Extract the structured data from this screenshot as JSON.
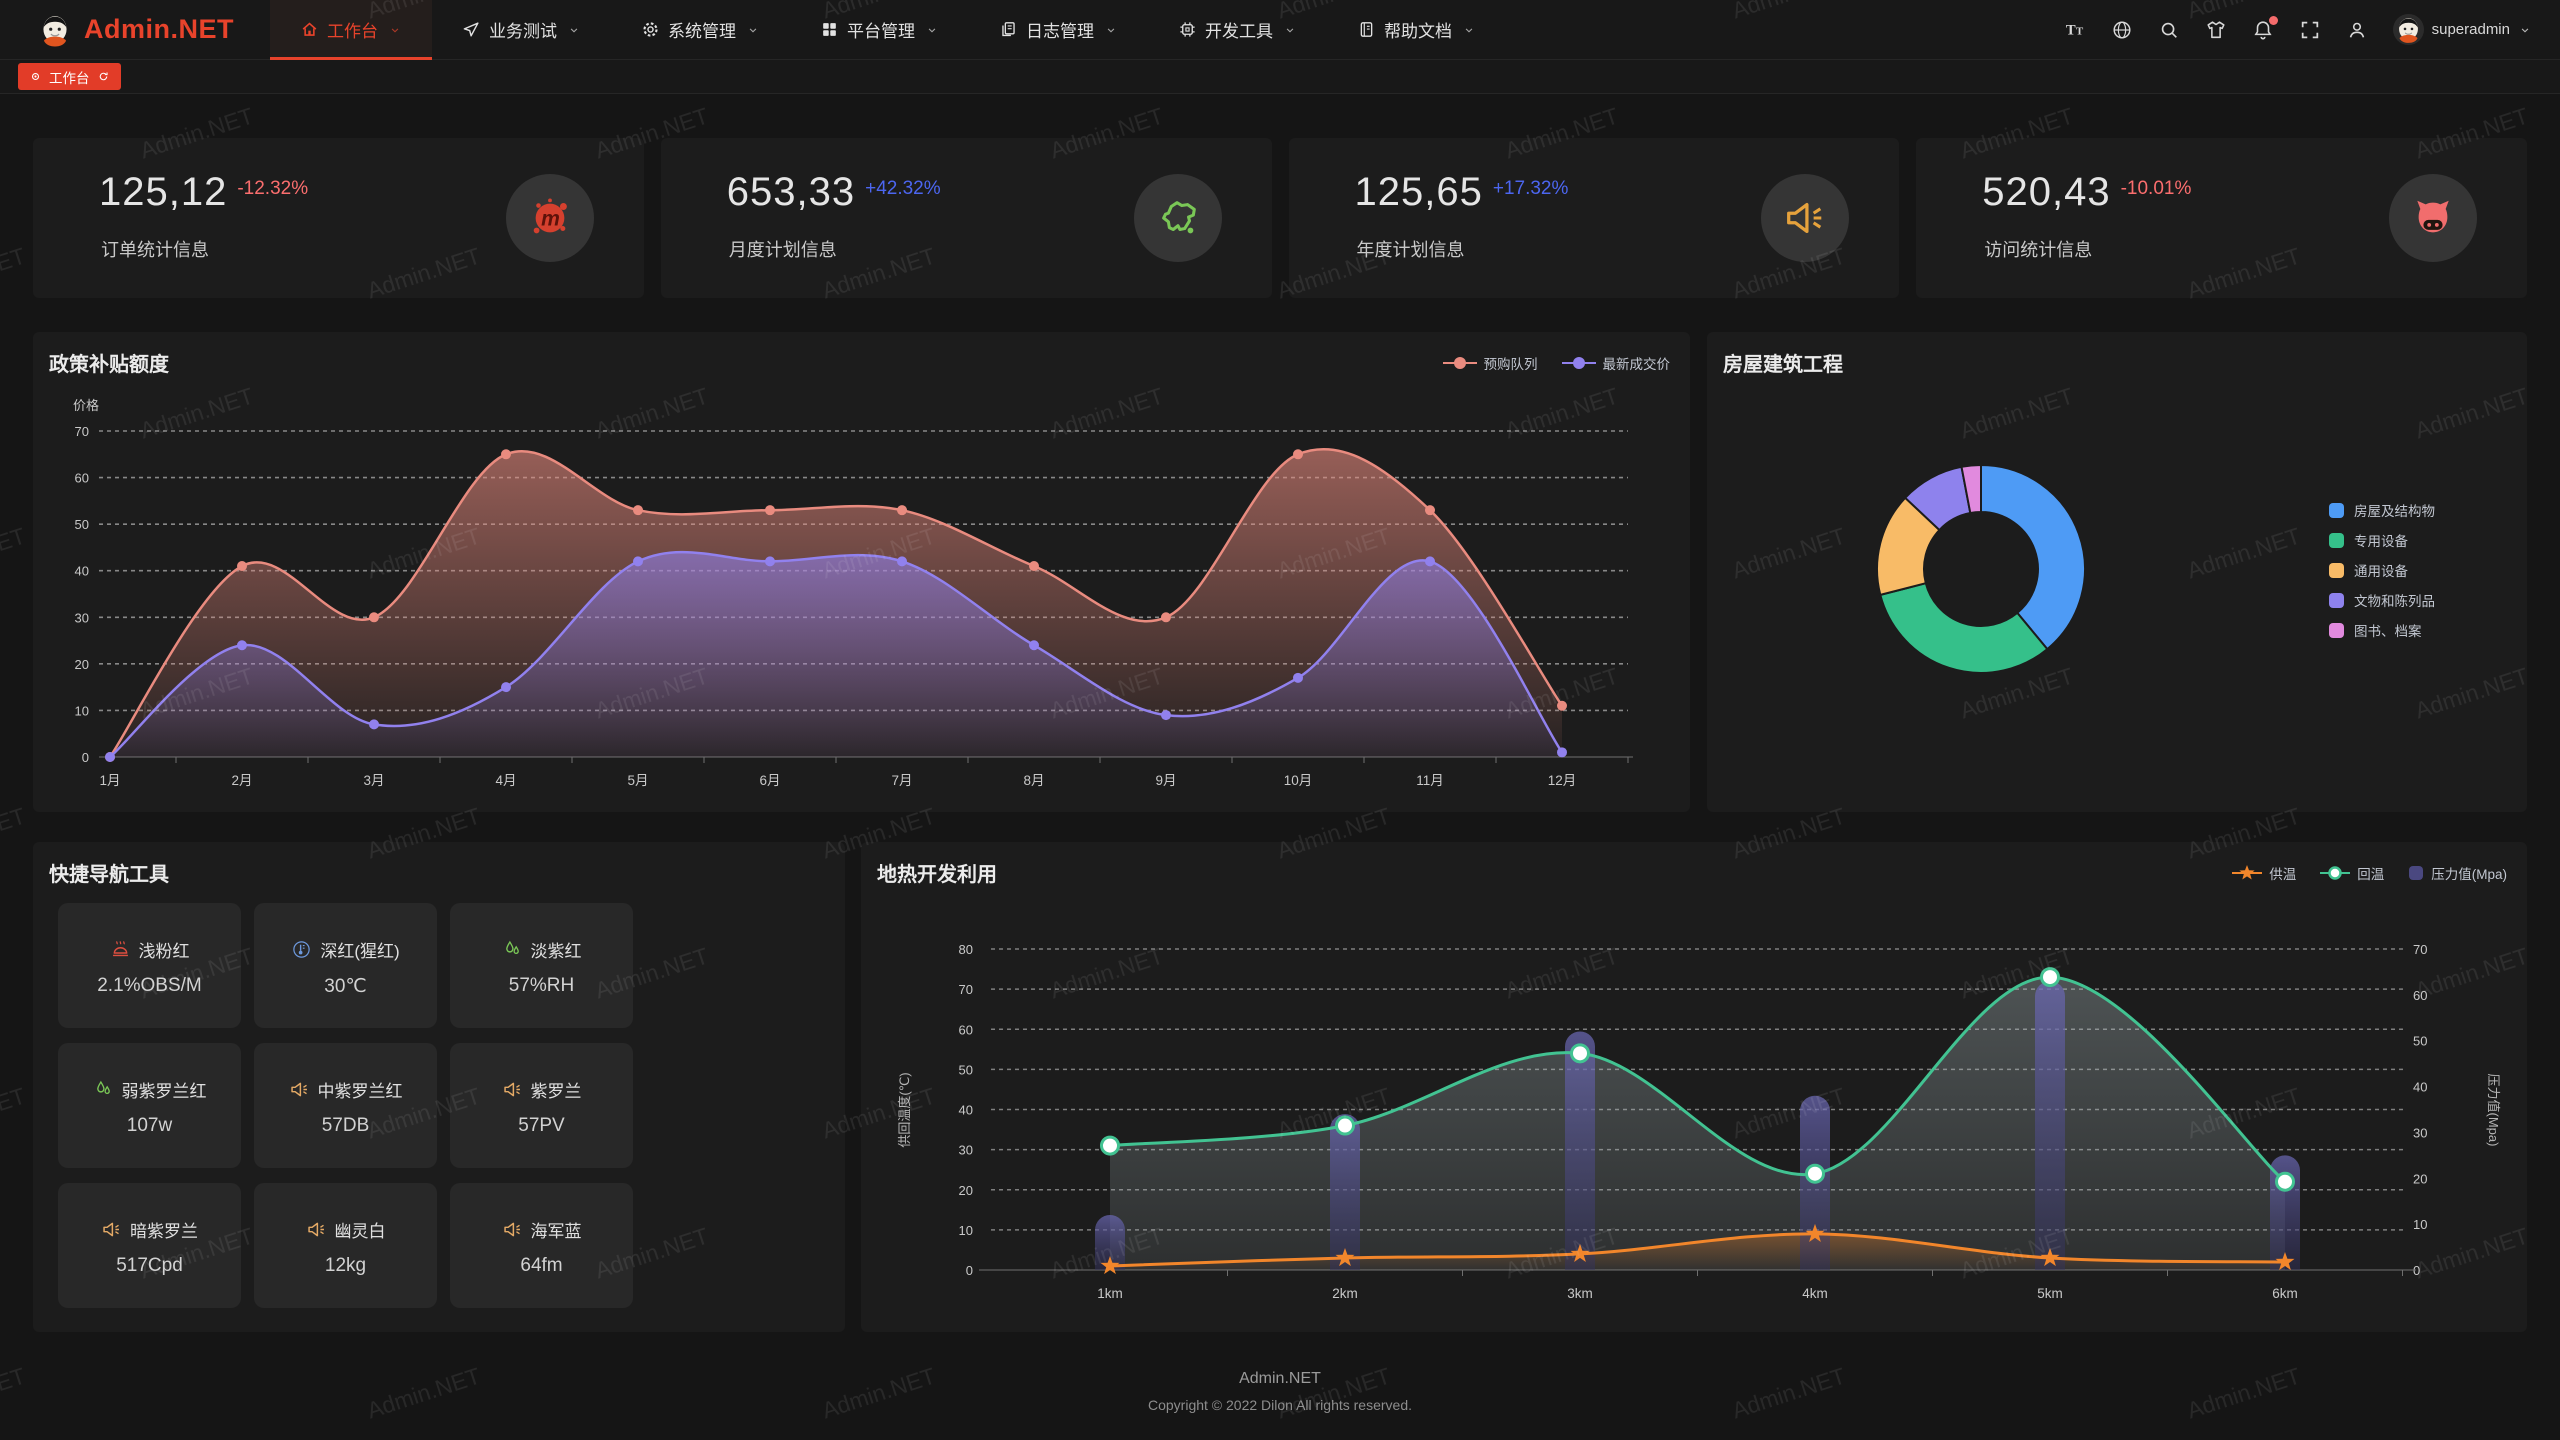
{
  "navbar": {
    "logo_text": "Admin.NET",
    "menu": [
      {
        "key": "workbench",
        "label": "工作台",
        "icon": "home-icon",
        "active": true
      },
      {
        "key": "business-test",
        "label": "业务测试",
        "icon": "navigation-icon",
        "active": false
      },
      {
        "key": "system-management",
        "label": "系统管理",
        "icon": "gear-icon",
        "active": false
      },
      {
        "key": "platform-management",
        "label": "平台管理",
        "icon": "grid-icon",
        "active": false
      },
      {
        "key": "log-management",
        "label": "日志管理",
        "icon": "log-icon",
        "active": false
      },
      {
        "key": "dev-tools",
        "label": "开发工具",
        "icon": "chip-icon",
        "active": false
      },
      {
        "key": "help-docs",
        "label": "帮助文档",
        "icon": "docs-icon",
        "active": false
      }
    ],
    "right_icons": [
      {
        "name": "font-size-icon"
      },
      {
        "name": "language-icon"
      },
      {
        "name": "search-icon"
      },
      {
        "name": "theme-icon"
      },
      {
        "name": "bell-icon",
        "badge": true
      },
      {
        "name": "fullscreen-icon"
      },
      {
        "name": "profile-icon"
      }
    ],
    "user": "superadmin"
  },
  "tabbar": {
    "active_tab": "工作台"
  },
  "theme": {
    "accent": "#e23c28",
    "delta_up_color": "#4c66f0",
    "delta_down_color": "#fb6e6e",
    "panel_bg": "#1c1c1c",
    "page_bg": "#151515"
  },
  "stats": [
    {
      "value": "125,12",
      "delta": "-12.32%",
      "trend": "down",
      "label": "订单统计信息",
      "icon": "splash-icon",
      "icon_color": "#d5402e"
    },
    {
      "value": "653,33",
      "delta": "+42.32%",
      "trend": "up",
      "label": "月度计划信息",
      "icon": "china-map-icon",
      "icon_color": "#7ac756"
    },
    {
      "value": "125,65",
      "delta": "+17.32%",
      "trend": "up",
      "label": "年度计划信息",
      "icon": "speaker-icon",
      "icon_color": "#e6a23c"
    },
    {
      "value": "520,43",
      "delta": "-10.01%",
      "trend": "down",
      "label": "访问统计信息",
      "icon": "cat-icon",
      "icon_color": "#f16d6d"
    }
  ],
  "chart_data": [
    {
      "type": "area",
      "title": "政策补贴额度",
      "ylabel": "价格",
      "ylim": [
        0,
        70
      ],
      "ytick_step": 10,
      "grid": "dashed",
      "legend_position": "top-right",
      "categories": [
        "1月",
        "2月",
        "3月",
        "4月",
        "5月",
        "6月",
        "7月",
        "8月",
        "9月",
        "10月",
        "11月",
        "12月"
      ],
      "series": [
        {
          "name": "预购队列",
          "color": "#e98b7f",
          "values": [
            0,
            41,
            30,
            65,
            53,
            53,
            53,
            41,
            30,
            65,
            53,
            11
          ]
        },
        {
          "name": "最新成交价",
          "color": "#9181ee",
          "values": [
            0,
            24,
            7,
            15,
            42,
            42,
            42,
            24,
            9,
            17,
            42,
            1
          ]
        }
      ]
    },
    {
      "type": "pie",
      "title": "房屋建筑工程",
      "donut": true,
      "legend_position": "right",
      "labels": [
        "房屋及结构物",
        "专用设备",
        "通用设备",
        "文物和陈列品",
        "图书、档案"
      ],
      "values": [
        39,
        32,
        16,
        10,
        3
      ],
      "colors": [
        "#4e9bf5",
        "#35c08a",
        "#f8bb67",
        "#8e82ed",
        "#e18ade"
      ]
    },
    {
      "type": "mixed",
      "title": "地热开发利用",
      "grid": "dashed",
      "legend_position": "top-right",
      "categories": [
        "1km",
        "2km",
        "3km",
        "4km",
        "5km",
        "6km"
      ],
      "left_axis": {
        "label": "供回温度(℃)",
        "min": 0,
        "max": 80,
        "step": 10
      },
      "right_axis": {
        "label": "压力值(Mpa)",
        "min": 0,
        "max": 70,
        "step": 10
      },
      "series": [
        {
          "name": "供温",
          "type": "line",
          "marker": "star",
          "axis": "left",
          "color": "#f2862b",
          "values": [
            1,
            3,
            4,
            9,
            3,
            2
          ]
        },
        {
          "name": "回温",
          "type": "line",
          "marker": "circle",
          "axis": "left",
          "color": "#42c392",
          "values": [
            31,
            36,
            54,
            24,
            73,
            22
          ]
        },
        {
          "name": "压力值(Mpa)",
          "type": "bar",
          "axis": "right",
          "color": "#54528f",
          "values": [
            12,
            34,
            52,
            38,
            63,
            25
          ]
        }
      ]
    }
  ],
  "quick_nav": {
    "title": "快捷导航工具",
    "items": [
      {
        "icon": "heat-icon",
        "icon_color": "#dd4f40",
        "name": "浅粉红",
        "value": "2.1%OBS/M"
      },
      {
        "icon": "thermometer-icon",
        "icon_color": "#6e9ade",
        "name": "深红(猩红)",
        "value": "30℃"
      },
      {
        "icon": "drops-icon",
        "icon_color": "#7ac756",
        "name": "淡紫红",
        "value": "57%RH"
      },
      {
        "icon": "drops-icon",
        "icon_color": "#7ac756",
        "name": "弱紫罗兰红",
        "value": "107w"
      },
      {
        "icon": "speaker-icon",
        "icon_color": "#e5aa66",
        "name": "中紫罗兰红",
        "value": "57DB"
      },
      {
        "icon": "speaker-icon",
        "icon_color": "#e5aa66",
        "name": "紫罗兰",
        "value": "57PV"
      },
      {
        "icon": "speaker-icon",
        "icon_color": "#e5aa66",
        "name": "暗紫罗兰",
        "value": "517Cpd"
      },
      {
        "icon": "speaker-icon",
        "icon_color": "#e5aa66",
        "name": "幽灵白",
        "value": "12kg"
      },
      {
        "icon": "speaker-icon",
        "icon_color": "#e5aa66",
        "name": "海军蓝",
        "value": "64fm"
      }
    ]
  },
  "footer": {
    "line1": "Admin.NET",
    "line2": "Copyright © 2022 Dilon All rights reserved."
  },
  "watermark": {
    "text": "Admin.NET"
  }
}
